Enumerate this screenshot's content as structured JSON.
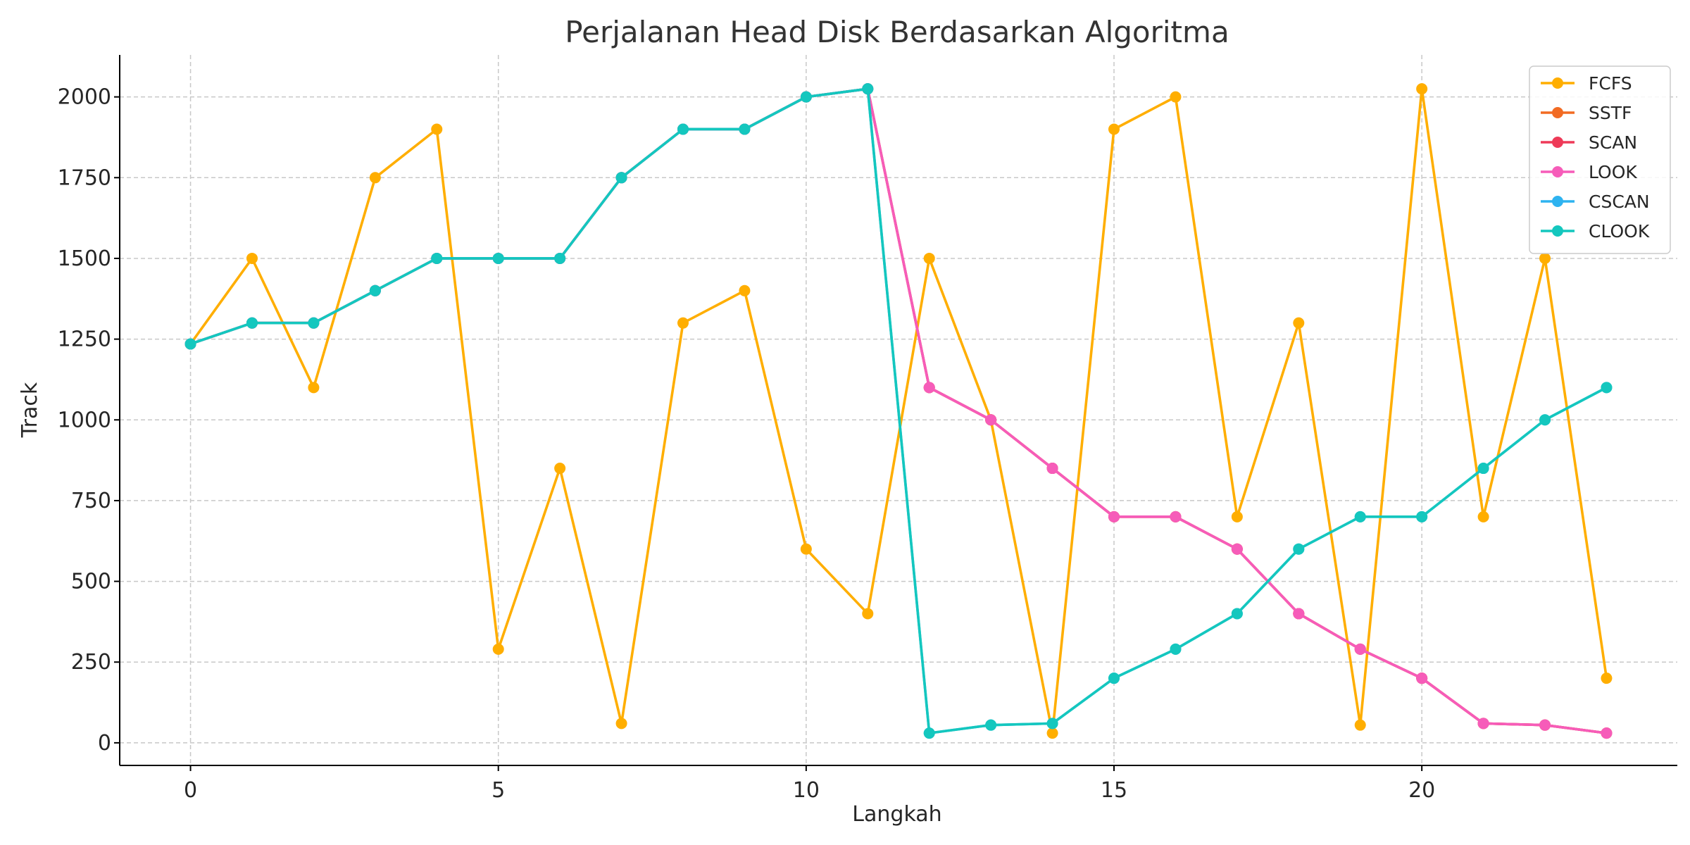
{
  "chart_data": {
    "type": "line",
    "title": "Perjalanan Head Disk Berdasarkan Algoritma",
    "xlabel": "Langkah",
    "ylabel": "Track",
    "xlim": [
      -1.15,
      24.15
    ],
    "ylim": [
      -70,
      2130
    ],
    "xticks": [
      0,
      5,
      10,
      15,
      20
    ],
    "yticks": [
      0,
      250,
      500,
      750,
      1000,
      1250,
      1500,
      1750,
      2000
    ],
    "grid": true,
    "legend_position": "top-right",
    "x": [
      0,
      1,
      2,
      3,
      4,
      5,
      6,
      7,
      8,
      9,
      10,
      11,
      12,
      13,
      14,
      15,
      16,
      17,
      18,
      19,
      20,
      21,
      22,
      23
    ],
    "series": [
      {
        "name": "FCFS",
        "color": "#FFAE00",
        "values": [
          1235,
          1500,
          1100,
          1750,
          1900,
          290,
          850,
          60,
          1300,
          1400,
          600,
          400,
          1500,
          1000,
          30,
          1900,
          2000,
          700,
          1300,
          55,
          2025,
          700,
          1500,
          200
        ]
      },
      {
        "name": "SSTF",
        "color": "#F26B23",
        "values": [
          1235,
          1300,
          1300,
          1400,
          1500,
          1500,
          1500,
          1750,
          1900,
          1900,
          2000,
          2025,
          1100,
          1000,
          850,
          700,
          700,
          600,
          400,
          290,
          200,
          60,
          55,
          30
        ]
      },
      {
        "name": "SCAN",
        "color": "#EE3A58",
        "values": [
          1235,
          1300,
          1300,
          1400,
          1500,
          1500,
          1500,
          1750,
          1900,
          1900,
          2000,
          2025,
          1100,
          1000,
          850,
          700,
          700,
          600,
          400,
          290,
          200,
          60,
          55,
          30
        ]
      },
      {
        "name": "LOOK",
        "color": "#F65CB9",
        "values": [
          1235,
          1300,
          1300,
          1400,
          1500,
          1500,
          1500,
          1750,
          1900,
          1900,
          2000,
          2025,
          1100,
          1000,
          850,
          700,
          700,
          600,
          400,
          290,
          200,
          60,
          55,
          30
        ]
      },
      {
        "name": "CSCAN",
        "color": "#2EB3F0",
        "values": [
          1235,
          1300,
          1300,
          1400,
          1500,
          1500,
          1500,
          1750,
          1900,
          1900,
          2000,
          2025,
          30,
          55,
          60,
          200,
          290,
          400,
          600,
          700,
          700,
          850,
          1000,
          1100
        ]
      },
      {
        "name": "CLOOK",
        "color": "#14C7BE",
        "values": [
          1235,
          1300,
          1300,
          1400,
          1500,
          1500,
          1500,
          1750,
          1900,
          1900,
          2000,
          2025,
          30,
          55,
          60,
          200,
          290,
          400,
          600,
          700,
          700,
          850,
          1000,
          1100
        ]
      }
    ]
  }
}
